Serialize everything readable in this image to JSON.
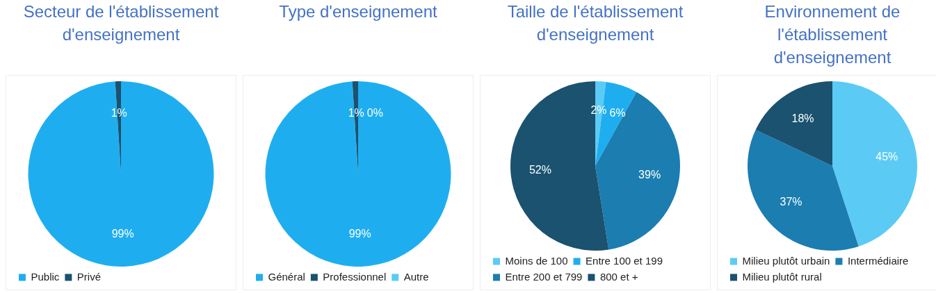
{
  "chart_data": [
    {
      "type": "pie",
      "title": "Secteur de l'établissement d'enseignement",
      "categories": [
        "Public",
        "Privé"
      ],
      "values": [
        99,
        1
      ],
      "colors": [
        "#1eaef0",
        "#1a5270"
      ],
      "value_labels": [
        "99%",
        "1%"
      ],
      "legend": "bottom"
    },
    {
      "type": "pie",
      "title": "Type d'enseignement",
      "categories": [
        "Général",
        "Professionnel",
        "Autre"
      ],
      "values": [
        99,
        1,
        0
      ],
      "colors": [
        "#1eaef0",
        "#1a5270",
        "#5bcbf5"
      ],
      "value_labels": [
        "99%",
        "1%",
        "0%"
      ],
      "legend": "bottom"
    },
    {
      "type": "pie",
      "title": "Taille de l'établissement d'enseignement",
      "categories": [
        "Moins de 100",
        "Entre 100 et 199",
        "Entre 200 et 799",
        "800 et +"
      ],
      "values": [
        2,
        6,
        39,
        52
      ],
      "colors": [
        "#5bcbf5",
        "#1eaef0",
        "#1b7db0",
        "#1a5270"
      ],
      "value_labels": [
        "2%",
        "6%",
        "39%",
        "52%"
      ],
      "legend": "bottom"
    },
    {
      "type": "pie",
      "title": "Environnement de l'établissement d'enseignement",
      "categories": [
        "Milieu plutôt urbain",
        "Intermédiaire",
        "Milieu plutôt rural"
      ],
      "values": [
        45,
        37,
        18
      ],
      "colors": [
        "#5bcbf5",
        "#1b7db0",
        "#1a5270"
      ],
      "value_labels": [
        "45%",
        "37%",
        "18%"
      ],
      "legend": "bottom"
    }
  ]
}
